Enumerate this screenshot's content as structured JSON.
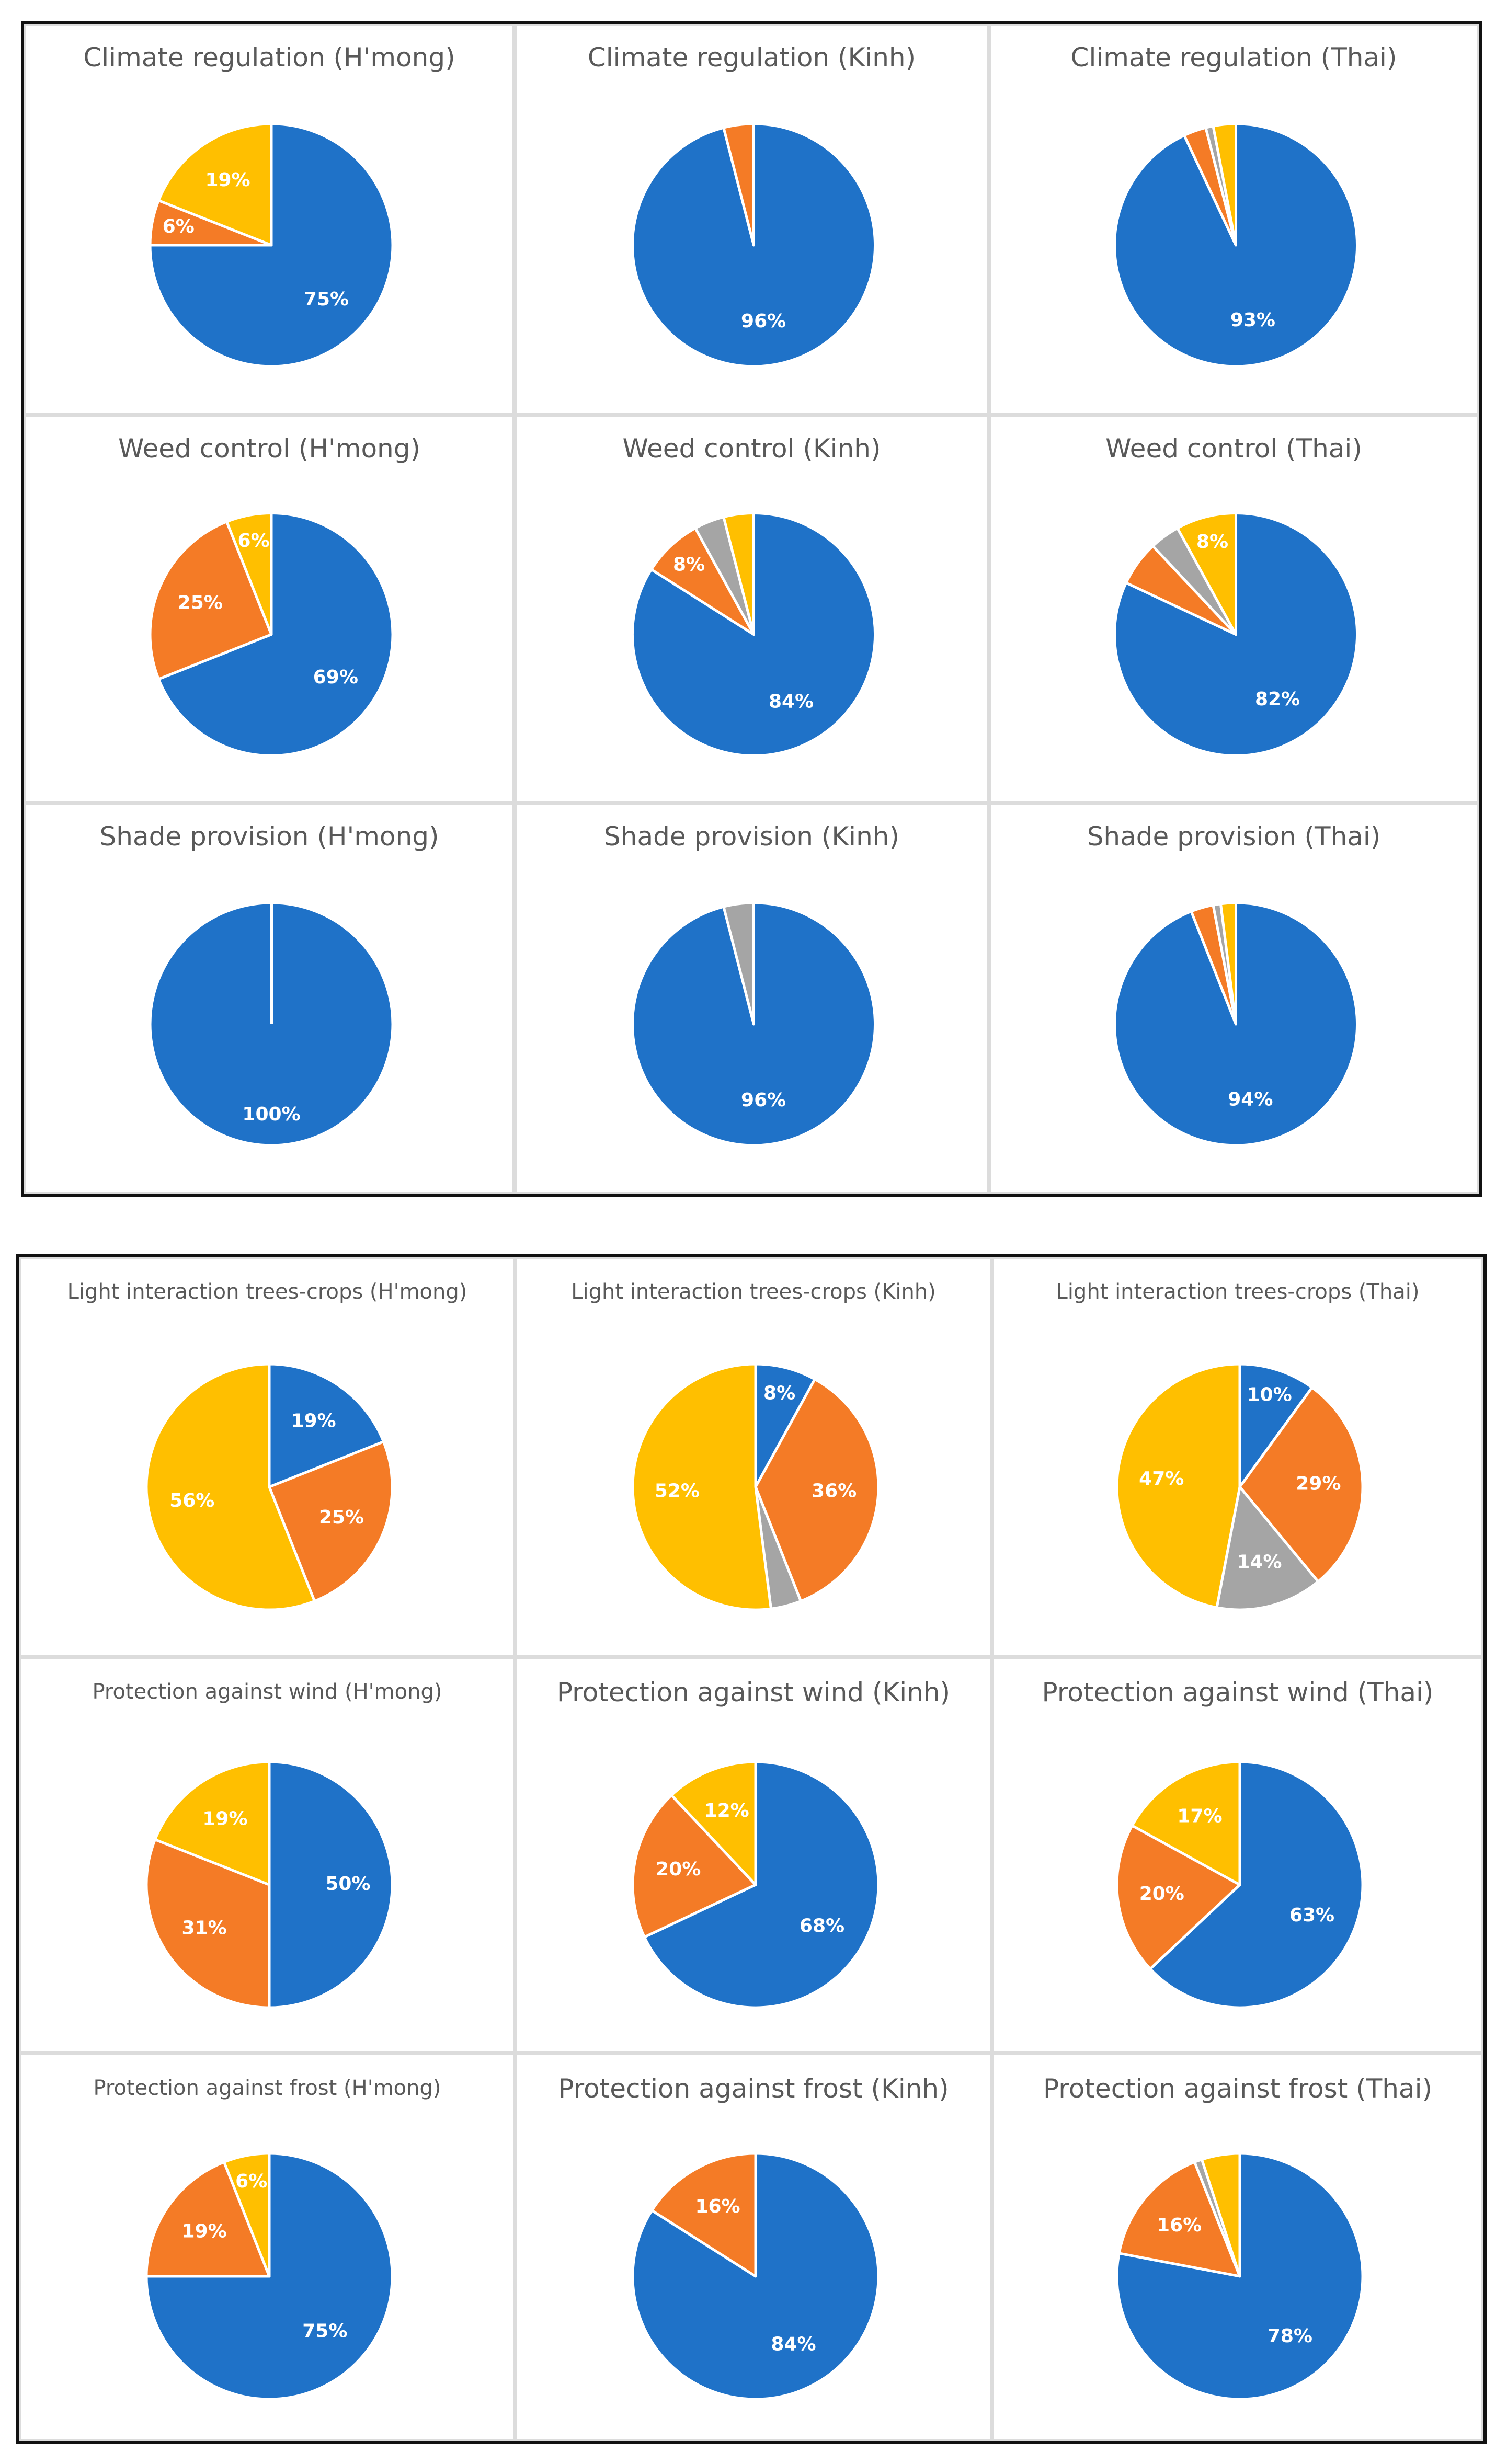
{
  "colors": {
    "blue": "#1f72c8",
    "orange": "#f47b26",
    "gray": "#a5a5a5",
    "yellow": "#ffbf00"
  },
  "chart_data": [
    {
      "type": "pie",
      "title": "Climate regulation (H'mong)",
      "slices": [
        {
          "color": "blue",
          "value": 75,
          "label": "75%"
        },
        {
          "color": "orange",
          "value": 6,
          "label": "6%"
        },
        {
          "color": "yellow",
          "value": 19,
          "label": "19%"
        }
      ]
    },
    {
      "type": "pie",
      "title": "Climate regulation (Kinh)",
      "slices": [
        {
          "color": "blue",
          "value": 96,
          "label": "96%"
        },
        {
          "color": "orange",
          "value": 4,
          "label": ""
        }
      ]
    },
    {
      "type": "pie",
      "title": "Climate regulation (Thai)",
      "slices": [
        {
          "color": "blue",
          "value": 93,
          "label": "93%"
        },
        {
          "color": "orange",
          "value": 3,
          "label": ""
        },
        {
          "color": "gray",
          "value": 1,
          "label": ""
        },
        {
          "color": "yellow",
          "value": 3,
          "label": ""
        }
      ]
    },
    {
      "type": "pie",
      "title": "Weed control (H'mong)",
      "slices": [
        {
          "color": "blue",
          "value": 69,
          "label": "69%"
        },
        {
          "color": "orange",
          "value": 25,
          "label": "25%"
        },
        {
          "color": "yellow",
          "value": 6,
          "label": "6%"
        }
      ]
    },
    {
      "type": "pie",
      "title": "Weed control (Kinh)",
      "slices": [
        {
          "color": "blue",
          "value": 84,
          "label": "84%"
        },
        {
          "color": "orange",
          "value": 8,
          "label": "8%"
        },
        {
          "color": "gray",
          "value": 4,
          "label": ""
        },
        {
          "color": "yellow",
          "value": 4,
          "label": ""
        }
      ]
    },
    {
      "type": "pie",
      "title": "Weed control (Thai)",
      "slices": [
        {
          "color": "blue",
          "value": 82,
          "label": "82%"
        },
        {
          "color": "orange",
          "value": 6,
          "label": ""
        },
        {
          "color": "gray",
          "value": 4,
          "label": ""
        },
        {
          "color": "yellow",
          "value": 8,
          "label": "8%"
        }
      ]
    },
    {
      "type": "pie",
      "title": "Shade provision (H'mong)",
      "slices": [
        {
          "color": "blue",
          "value": 100,
          "label": "100%"
        }
      ]
    },
    {
      "type": "pie",
      "title": "Shade provision (Kinh)",
      "slices": [
        {
          "color": "blue",
          "value": 96,
          "label": "96%"
        },
        {
          "color": "gray",
          "value": 4,
          "label": ""
        }
      ]
    },
    {
      "type": "pie",
      "title": "Shade provision (Thai)",
      "slices": [
        {
          "color": "blue",
          "value": 94,
          "label": "94%"
        },
        {
          "color": "orange",
          "value": 3,
          "label": ""
        },
        {
          "color": "gray",
          "value": 1,
          "label": ""
        },
        {
          "color": "yellow",
          "value": 2,
          "label": ""
        }
      ]
    },
    {
      "type": "pie",
      "title": "Light interaction trees-crops (H'mong)",
      "slices": [
        {
          "color": "blue",
          "value": 19,
          "label": "19%"
        },
        {
          "color": "orange",
          "value": 25,
          "label": "25%"
        },
        {
          "color": "yellow",
          "value": 56,
          "label": "56%"
        }
      ]
    },
    {
      "type": "pie",
      "title": "Light interaction trees-crops (Kinh)",
      "slices": [
        {
          "color": "blue",
          "value": 8,
          "label": "8%"
        },
        {
          "color": "orange",
          "value": 36,
          "label": "36%"
        },
        {
          "color": "gray",
          "value": 4,
          "label": ""
        },
        {
          "color": "yellow",
          "value": 52,
          "label": "52%"
        }
      ]
    },
    {
      "type": "pie",
      "title": "Light interaction trees-crops (Thai)",
      "slices": [
        {
          "color": "blue",
          "value": 10,
          "label": "10%"
        },
        {
          "color": "orange",
          "value": 29,
          "label": "29%"
        },
        {
          "color": "gray",
          "value": 14,
          "label": "14%"
        },
        {
          "color": "yellow",
          "value": 47,
          "label": "47%"
        }
      ]
    },
    {
      "type": "pie",
      "title": "Protection against wind (H'mong)",
      "slices": [
        {
          "color": "blue",
          "value": 50,
          "label": "50%"
        },
        {
          "color": "orange",
          "value": 31,
          "label": "31%"
        },
        {
          "color": "yellow",
          "value": 19,
          "label": "19%"
        }
      ]
    },
    {
      "type": "pie",
      "title": "Protection against wind (Kinh)",
      "slices": [
        {
          "color": "blue",
          "value": 68,
          "label": "68%"
        },
        {
          "color": "orange",
          "value": 20,
          "label": "20%"
        },
        {
          "color": "yellow",
          "value": 12,
          "label": "12%"
        }
      ]
    },
    {
      "type": "pie",
      "title": "Protection against wind (Thai)",
      "slices": [
        {
          "color": "blue",
          "value": 63,
          "label": "63%"
        },
        {
          "color": "orange",
          "value": 20,
          "label": "20%"
        },
        {
          "color": "yellow",
          "value": 17,
          "label": "17%"
        }
      ]
    },
    {
      "type": "pie",
      "title": "Protection against frost (H'mong)",
      "slices": [
        {
          "color": "blue",
          "value": 75,
          "label": "75%"
        },
        {
          "color": "orange",
          "value": 19,
          "label": "19%"
        },
        {
          "color": "yellow",
          "value": 6,
          "label": "6%"
        }
      ]
    },
    {
      "type": "pie",
      "title": "Protection against frost (Kinh)",
      "slices": [
        {
          "color": "blue",
          "value": 84,
          "label": "84%"
        },
        {
          "color": "orange",
          "value": 16,
          "label": "16%"
        }
      ]
    },
    {
      "type": "pie",
      "title": "Protection against frost (Thai)",
      "slices": [
        {
          "color": "blue",
          "value": 78,
          "label": "78%"
        },
        {
          "color": "orange",
          "value": 16,
          "label": "16%"
        },
        {
          "color": "gray",
          "value": 1,
          "label": ""
        },
        {
          "color": "yellow",
          "value": 5,
          "label": ""
        }
      ]
    }
  ]
}
